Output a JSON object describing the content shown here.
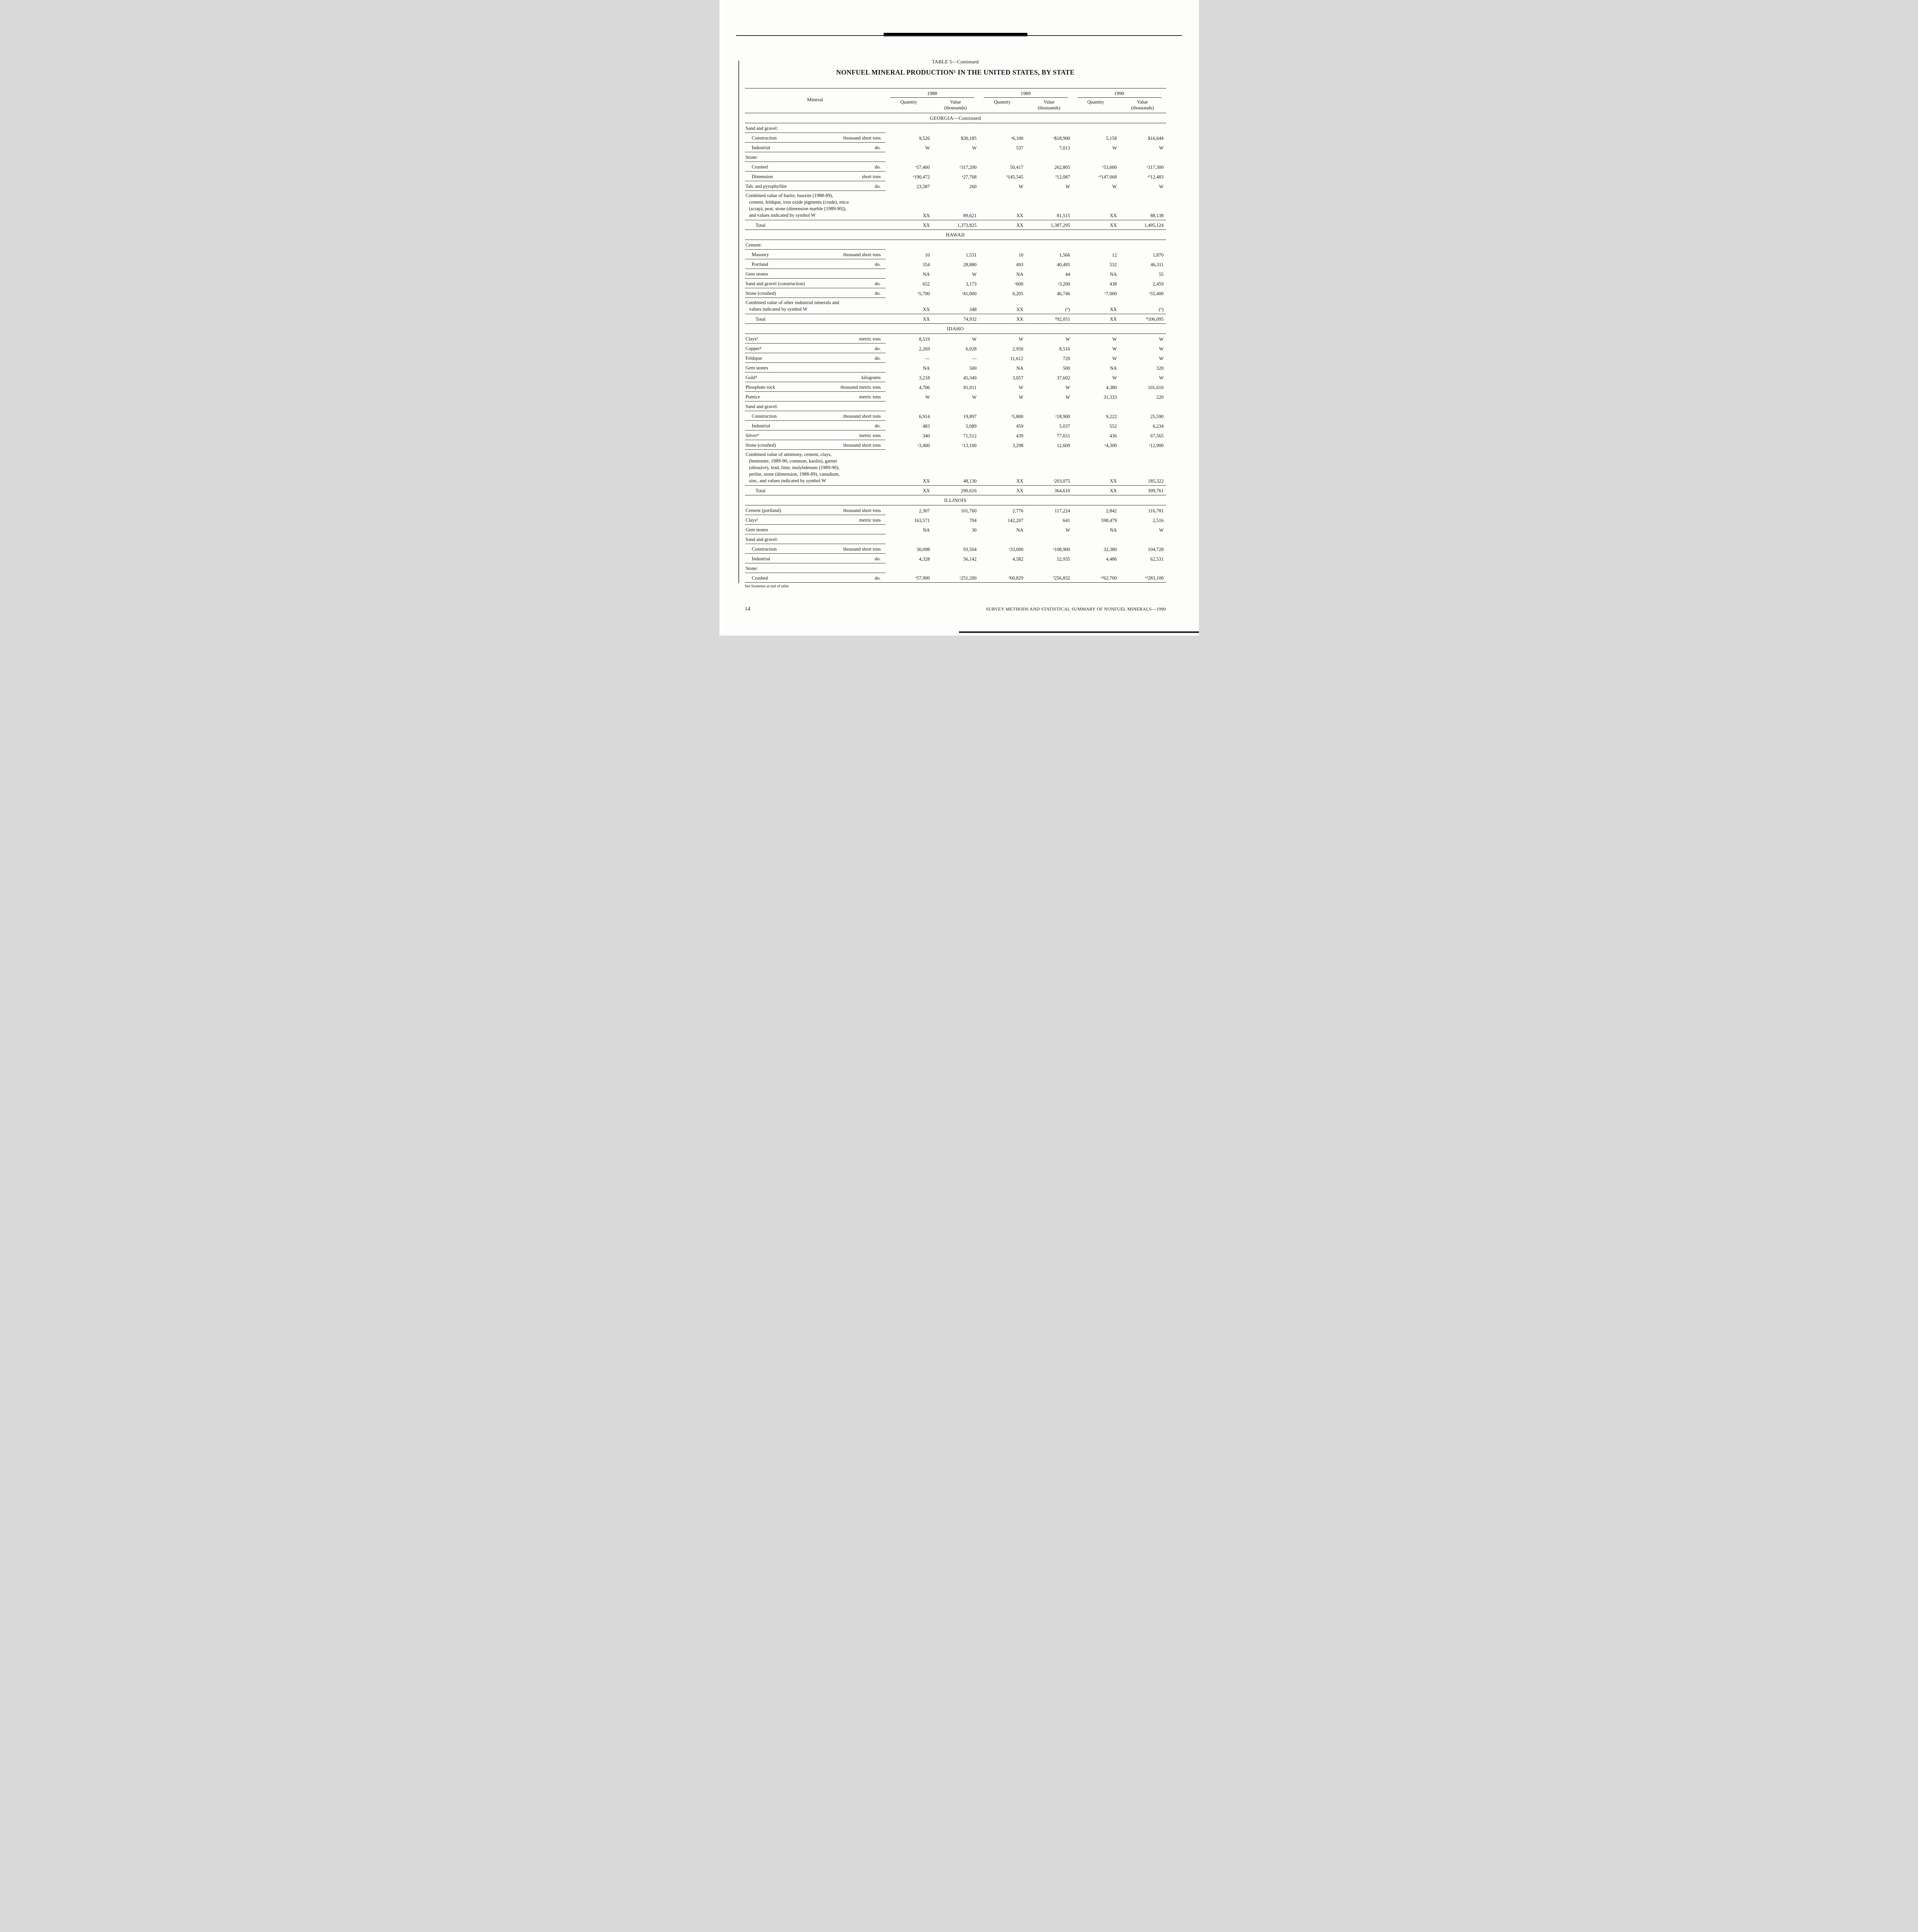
{
  "page": {
    "table_label": "TABLE 5—Continued",
    "title": "NONFUEL MINERAL PRODUCTION¹ IN THE UNITED STATES, BY STATE",
    "footnote": "See footnotes at end of table.",
    "page_number": "14",
    "footer": "SURVEY METHODS AND STATISTICAL SUMMARY OF NONFUEL MINERALS—1990"
  },
  "table": {
    "header": {
      "mineral": "Mineral",
      "years": [
        "1988",
        "1989",
        "1990"
      ],
      "quantity": "Quantity",
      "value_line1": "Value",
      "value_line2": "(thousands)"
    },
    "sections": [
      {
        "name": "GEORGIA—Continued",
        "rows": [
          {
            "type": "group",
            "label": "Sand and gravel:"
          },
          {
            "type": "data",
            "indent": 1,
            "label": "Construction",
            "unit": "thousand short tons",
            "values": [
              "9,526",
              "$30,185",
              "ᵉ6,100",
              "ᵉ$18,900",
              "5,158",
              "$16,644"
            ]
          },
          {
            "type": "data",
            "indent": 1,
            "label": "Industrial",
            "unit": "do.",
            "values": [
              "W",
              "W",
              "537",
              "7,013",
              "W",
              "W"
            ]
          },
          {
            "type": "group",
            "label": "Stone:"
          },
          {
            "type": "data",
            "indent": 1,
            "label": "Crushed",
            "unit": "do.",
            "values": [
              "ᵉ57,400",
              "ᵉ317,200",
              "50,417",
              "262,805",
              "ᵉ53,000",
              "ᵉ317,300"
            ]
          },
          {
            "type": "data",
            "indent": 1,
            "label": "Dimension",
            "unit": "short tons",
            "values": [
              "ᵉ190,472",
              "ᵉ27,768",
              "³145,545",
              "³12,087",
              "ᵉ³147,068",
              "ᵉ³12,483"
            ]
          },
          {
            "type": "data",
            "indent": 0,
            "label": "Talc and pyrophyllite",
            "unit": "do.",
            "values": [
              "23,587",
              "260",
              "W",
              "W",
              "W",
              "W"
            ]
          },
          {
            "type": "combined",
            "underline_data": true,
            "lines": [
              "Combined value of barite, bauxite (1988-89),",
              "cement, feldspar, iron oxide pigments (crude), mica",
              "(scrap), peat, stone (dimension marble [1989-90]),",
              "and values indicated by symbol W"
            ],
            "values": [
              "XX",
              "89,621",
              "XX",
              "81,515",
              "XX",
              "88,138"
            ]
          },
          {
            "type": "total",
            "label": "Total",
            "values": [
              "XX",
              "1,373,825",
              "XX",
              "1,387,295",
              "XX",
              "1,495,124"
            ]
          }
        ]
      },
      {
        "name": "HAWAII",
        "rows": [
          {
            "type": "group",
            "label": "Cement:"
          },
          {
            "type": "data",
            "indent": 1,
            "label": "Masonry",
            "unit": "thousand short tons",
            "values": [
              "10",
              "1,531",
              "10",
              "1,566",
              "12",
              "1,870"
            ]
          },
          {
            "type": "data",
            "indent": 1,
            "label": "Portland",
            "unit": "do.",
            "values": [
              "354",
              "28,880",
              "493",
              "40,495",
              "532",
              "46,311"
            ]
          },
          {
            "type": "data",
            "indent": 0,
            "label": "Gem stones",
            "unit": "",
            "values": [
              "NA",
              "W",
              "NA",
              "44",
              "NA",
              "55"
            ]
          },
          {
            "type": "data",
            "indent": 0,
            "label": "Sand and gravel (construction)",
            "unit": "do.",
            "values": [
              "652",
              "3,173",
              "ᵉ600",
              "ᵉ3,200",
              "438",
              "2,459"
            ]
          },
          {
            "type": "data",
            "indent": 0,
            "label": "Stone (crushed)",
            "unit": "do.",
            "values": [
              "ᵉ5,700",
              "ᵉ41,000",
              "6,205",
              "46,746",
              "ᵉ7,000",
              "ᵉ55,400"
            ]
          },
          {
            "type": "combined",
            "underline_data": true,
            "lines": [
              "Combined value of other industrial minerals and",
              "values indicated by symbol W"
            ],
            "values": [
              "XX",
              "348",
              "XX",
              "(⁹)",
              "XX",
              "(⁹)"
            ]
          },
          {
            "type": "total",
            "label": "Total",
            "values": [
              "XX",
              "74,932",
              "XX",
              "⁸92,051",
              "XX",
              "⁸106,095"
            ]
          }
        ]
      },
      {
        "name": "IDAHO",
        "rows": [
          {
            "type": "data",
            "indent": 0,
            "label": "Clays²",
            "unit": "metric tons",
            "values": [
              "8,519",
              "W",
              "W",
              "W",
              "W",
              "W"
            ]
          },
          {
            "type": "data",
            "indent": 0,
            "label": "Copper⁴",
            "unit": "do.",
            "values": [
              "2,269",
              "6,028",
              "2,950",
              "8,516",
              "W",
              "W"
            ]
          },
          {
            "type": "data",
            "indent": 0,
            "label": "Feldspar",
            "unit": "do.",
            "values": [
              "—",
              "—",
              "11,612",
              "720",
              "W",
              "W"
            ]
          },
          {
            "type": "data",
            "indent": 0,
            "label": "Gem stones",
            "unit": "",
            "values": [
              "NA",
              "500",
              "NA",
              "500",
              "NA",
              "320"
            ]
          },
          {
            "type": "data",
            "indent": 0,
            "label": "Gold⁴",
            "unit": "kilograms",
            "values": [
              "3,218",
              "45,349",
              "3,057",
              "37,602",
              "W",
              "W"
            ]
          },
          {
            "type": "data",
            "indent": 0,
            "label": "Phosphate rock",
            "unit": "thousand metric tons",
            "values": [
              "4,706",
              "81,011",
              "W",
              "W",
              "4,380",
              "101,610"
            ]
          },
          {
            "type": "data",
            "indent": 0,
            "label": "Pumice",
            "unit": "metric tons",
            "values": [
              "W",
              "W",
              "W",
              "W",
              "31,333",
              "220"
            ]
          },
          {
            "type": "group",
            "label": "Sand and gravel:"
          },
          {
            "type": "data",
            "indent": 1,
            "label": "Construction",
            "unit": "thousand short tons",
            "values": [
              "6,914",
              "19,897",
              "ᵉ5,800",
              "ᵉ18,900",
              "9,222",
              "25,590"
            ]
          },
          {
            "type": "data",
            "indent": 1,
            "label": "Industrial",
            "unit": "do.",
            "values": [
              "483",
              "5,089",
              "459",
              "5,037",
              "552",
              "6,234"
            ]
          },
          {
            "type": "data",
            "indent": 0,
            "label": "Silver⁴",
            "unit": "metric tons",
            "values": [
              "340",
              "71,512",
              "439",
              "77,651",
              "436",
              "67,565"
            ]
          },
          {
            "type": "data",
            "indent": 0,
            "label": "Stone (crushed)",
            "unit": "thousand short tons",
            "values": [
              "ᵉ3,400",
              "ᵉ13,100",
              "3,298",
              "12,609",
              "ᵉ4,300",
              "ᵉ12,900"
            ]
          },
          {
            "type": "combined",
            "underline_data": true,
            "lines": [
              "Combined value of antimony, cement, clays,",
              "(bentonite, 1989-90, common, kaolin), garnet",
              "(abrasive), lead, lime, molybdenum (1989-90),",
              "perlite, stone (dimension, 1988-89), vanadium,",
              "zinc, and values indicated by symbol W"
            ],
            "values": [
              "XX",
              "48,130",
              "XX",
              "ʳ203,075",
              "XX",
              "185,322"
            ]
          },
          {
            "type": "total",
            "label": "Total",
            "values": [
              "XX",
              "290,616",
              "XX",
              "364,610",
              "XX",
              "399,761"
            ]
          }
        ]
      },
      {
        "name": "ILLINOIS",
        "rows": [
          {
            "type": "data",
            "indent": 0,
            "label": "Cement (portland)",
            "unit": "thousand short tons",
            "values": [
              "2,307",
              "101,760",
              "2,776",
              "117,224",
              "2,842",
              "116,781"
            ]
          },
          {
            "type": "data",
            "indent": 0,
            "label": "Clays²",
            "unit": "metric tons",
            "values": [
              "163,571",
              "704",
              "142,207",
              "641",
              "598,479",
              "2,516"
            ]
          },
          {
            "type": "data",
            "indent": 0,
            "label": "Gem stones",
            "unit": "",
            "values": [
              "NA",
              "30",
              "NA",
              "W",
              "NA",
              "W"
            ]
          },
          {
            "type": "group",
            "label": "Sand and gravel:"
          },
          {
            "type": "data",
            "indent": 1,
            "label": "Construction",
            "unit": "thousand short tons",
            "values": [
              "30,098",
              "93,504",
              "ᵉ33,000",
              "ᵉ108,900",
              "32,380",
              "104,728"
            ]
          },
          {
            "type": "data",
            "indent": 1,
            "label": "Industrial",
            "unit": "do.",
            "values": [
              "4,328",
              "56,142",
              "4,582",
              "52,935",
              "4,486",
              "62,531"
            ]
          },
          {
            "type": "group",
            "label": "Stone:"
          },
          {
            "type": "data",
            "indent": 1,
            "end": true,
            "label": "Crushed",
            "unit": "do.",
            "values": [
              "ᵉ57,900",
              "ᵉ251,200",
              "³60,829",
              "³256,832",
              "ᵉ³62,700",
              "ᵉ³283,100"
            ]
          }
        ]
      }
    ]
  }
}
